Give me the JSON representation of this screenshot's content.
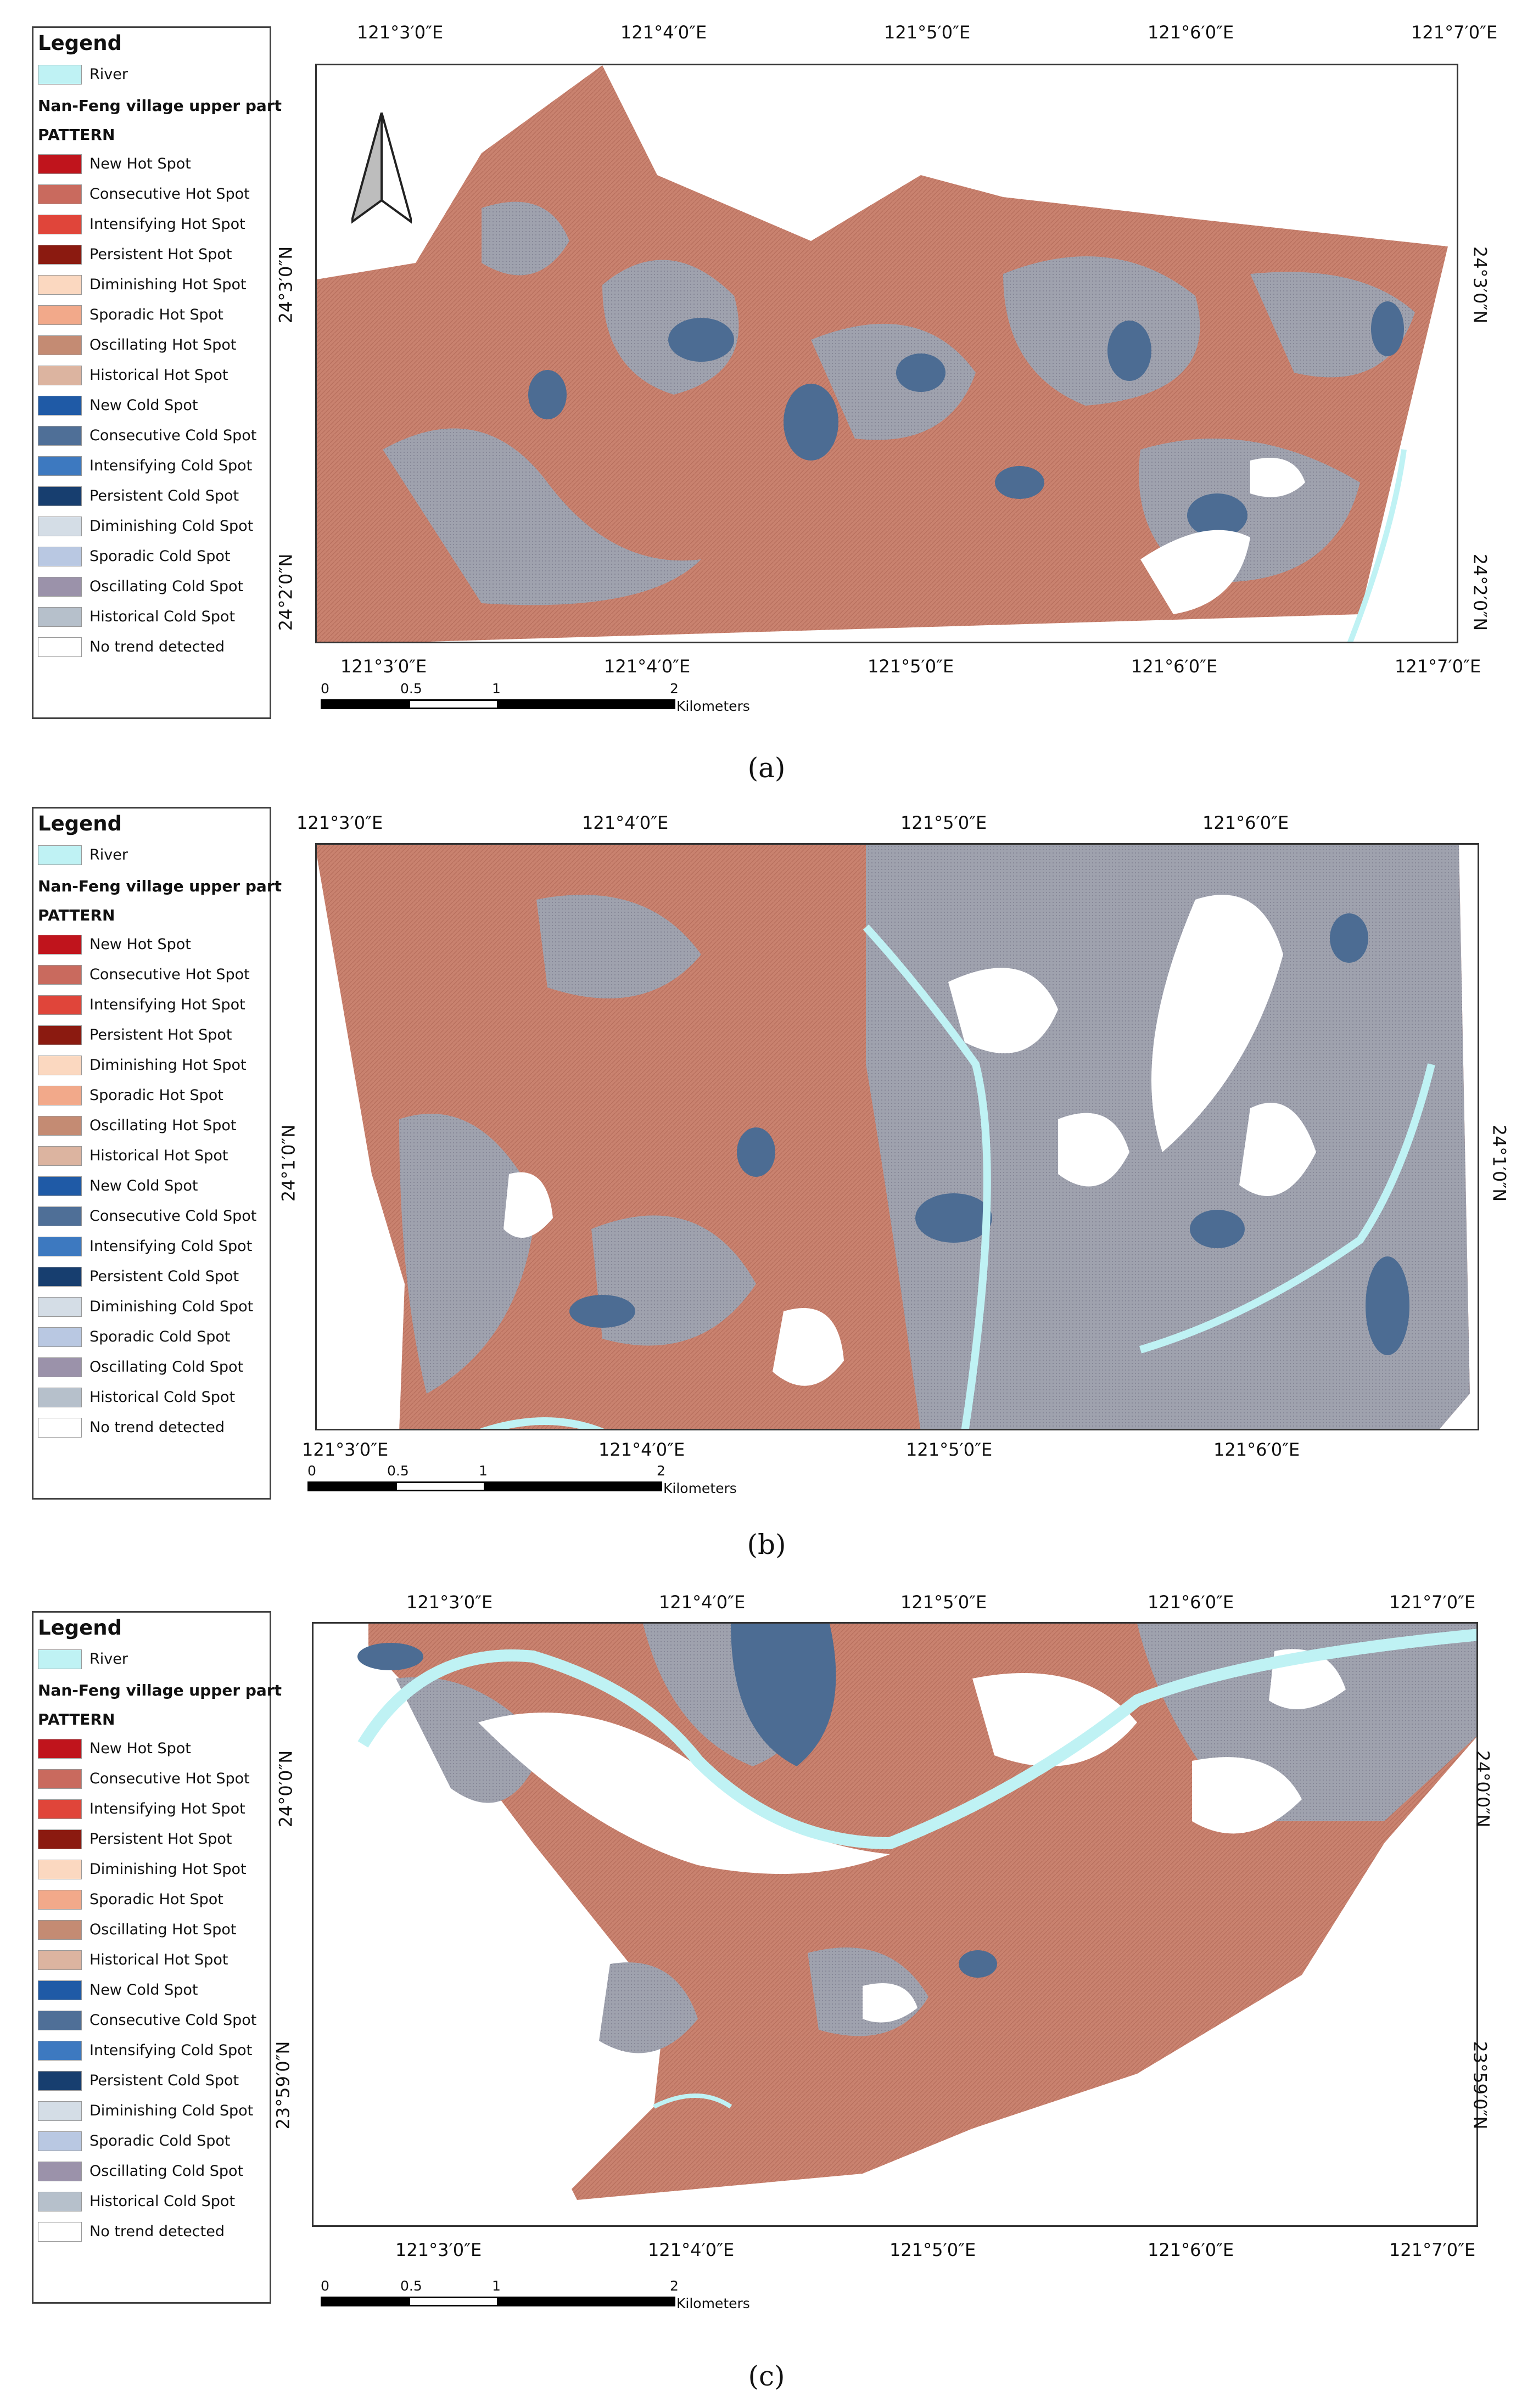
{
  "legend": {
    "title": "Legend",
    "river_label": "River",
    "area_label": "Nan-Feng village upper part",
    "pattern_label": "PATTERN",
    "items": [
      {
        "label": "New Hot Spot",
        "color": "#c0141c"
      },
      {
        "label": "Consecutive Hot Spot",
        "color": "#c96a5e"
      },
      {
        "label": "Intensifying Hot Spot",
        "color": "#e0453a"
      },
      {
        "label": "Persistent Hot Spot",
        "color": "#8b1a10"
      },
      {
        "label": "Diminishing Hot Spot",
        "color": "#fbd8c0"
      },
      {
        "label": "Sporadic Hot Spot",
        "color": "#f2a98a"
      },
      {
        "label": "Oscillating Hot Spot",
        "color": "#c48b73"
      },
      {
        "label": "Historical Hot Spot",
        "color": "#dcb4a0"
      },
      {
        "label": "New Cold Spot",
        "color": "#1f5aa6"
      },
      {
        "label": "Consecutive Cold Spot",
        "color": "#4f6f97"
      },
      {
        "label": "Intensifying Cold Spot",
        "color": "#3d79c0"
      },
      {
        "label": "Persistent Cold Spot",
        "color": "#173e6f"
      },
      {
        "label": "Diminishing Cold Spot",
        "color": "#d4dde6"
      },
      {
        "label": "Sporadic Cold Spot",
        "color": "#b9c8e2"
      },
      {
        "label": "Oscillating Cold Spot",
        "color": "#9b92aa"
      },
      {
        "label": "Historical Cold Spot",
        "color": "#b6c0cb"
      },
      {
        "label": "No trend detected",
        "color": "#ffffff"
      }
    ],
    "river_color": "#bff2f4"
  },
  "panels": [
    {
      "caption": "(a)",
      "top_lon": [
        "121°3′0″E",
        "121°4′0″E",
        "121°5′0″E",
        "121°6′0″E",
        "121°7′0″E"
      ],
      "bottom_lon": [
        "121°3′0″E",
        "121°4′0″E",
        "121°5′0″E",
        "121°6′0″E",
        "121°7′0″E"
      ],
      "lat": [
        "24°3′0″N",
        "24°2′0″N"
      ],
      "scale": [
        "0",
        "0.5",
        "1",
        "2"
      ],
      "scale_unit": "Kilometers"
    },
    {
      "caption": "(b)",
      "top_lon": [
        "121°3′0″E",
        "121°4′0″E",
        "121°5′0″E",
        "121°6′0″E"
      ],
      "bottom_lon": [
        "121°3′0″E",
        "121°4′0″E",
        "121°5′0″E",
        "121°6′0″E"
      ],
      "lat": [
        "24°1′0″N"
      ],
      "scale": [
        "0",
        "0.5",
        "1",
        "2"
      ],
      "scale_unit": "Kilometers"
    },
    {
      "caption": "(c)",
      "top_lon": [
        "121°3′0″E",
        "121°4′0″E",
        "121°5′0″E",
        "121°6′0″E",
        "121°7′0″E"
      ],
      "bottom_lon": [
        "121°3′0″E",
        "121°4′0″E",
        "121°5′0″E",
        "121°6′0″E",
        "121°7′0″E"
      ],
      "lat": [
        "24°0′0″N",
        "23°59′0″N"
      ],
      "scale": [
        "0",
        "0.5",
        "1",
        "2"
      ],
      "scale_unit": "Kilometers"
    }
  ]
}
